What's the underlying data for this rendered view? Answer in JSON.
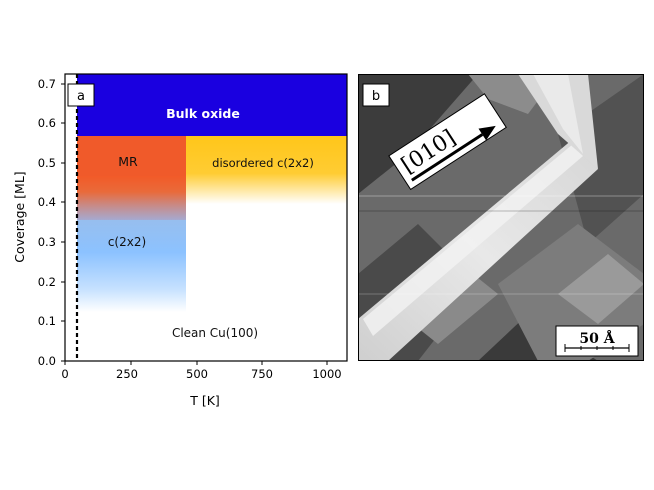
{
  "panel_a": {
    "label": "a",
    "regions": {
      "bulk_oxide": "Bulk oxide",
      "mr": "MR",
      "disordered": "disordered c(2x2)",
      "c2x2": "c(2x2)",
      "clean": "Clean Cu(100)"
    },
    "colors": {
      "bulk_oxide": "#1a00e0",
      "mr": "#f05a2a",
      "disordered": "#ffc61a",
      "c2x2": "#8fc4ff"
    },
    "xlabel": "T [K]",
    "ylabel": "Coverage [ML]",
    "xticks": [
      "0",
      "250",
      "500",
      "750",
      "1000"
    ],
    "yticks": [
      "0.0",
      "0.1",
      "0.2",
      "0.3",
      "0.4",
      "0.5",
      "0.6",
      "0.7"
    ]
  },
  "panel_b": {
    "label": "b",
    "direction": "[010]",
    "scale": "50 Å"
  },
  "chart_data": {
    "type": "area",
    "xlabel": "T [K]",
    "ylabel": "Coverage [ML]",
    "xlim": [
      -10,
      1070
    ],
    "ylim": [
      0.0,
      0.71
    ],
    "dashed_line_x": 50,
    "regions": [
      {
        "name": "Bulk oxide",
        "x": [
          50,
          1070
        ],
        "y": [
          0.57,
          0.71
        ]
      },
      {
        "name": "MR",
        "x": [
          50,
          470
        ],
        "y": [
          0.45,
          0.57
        ]
      },
      {
        "name": "disordered c(2x2)",
        "x": [
          470,
          1070
        ],
        "y": [
          0.4,
          0.57
        ]
      },
      {
        "name": "c(2x2)",
        "x": [
          50,
          470
        ],
        "y": [
          0.13,
          0.35
        ]
      },
      {
        "name": "Clean Cu(100)",
        "x": [
          50,
          1070
        ],
        "y": [
          0.0,
          0.13
        ]
      }
    ]
  }
}
